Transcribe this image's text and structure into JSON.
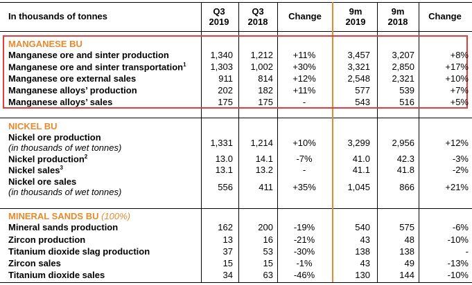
{
  "header": {
    "units": "In thousands of tonnes",
    "cols": [
      {
        "l1": "Q3",
        "l2": "2019"
      },
      {
        "l1": "Q3",
        "l2": "2018"
      },
      {
        "l1": "Change",
        "l2": ""
      },
      {
        "l1": "9m",
        "l2": "2019"
      },
      {
        "l1": "9m",
        "l2": "2018"
      },
      {
        "l1": "Change",
        "l2": ""
      }
    ]
  },
  "sections": [
    {
      "title": "MANGANESE BU",
      "title_suffix": "",
      "rows": [
        {
          "label": "Manganese ore and sinter production",
          "sup": "",
          "sub": "",
          "v": [
            "1,340",
            "1,212",
            "+11%",
            "3,457",
            "3,207",
            "+8%"
          ]
        },
        {
          "label": "Manganese ore and sinter transportation",
          "sup": "1",
          "sub": "",
          "v": [
            "1,303",
            "1,002",
            "+30%",
            "3,321",
            "2,850",
            "+17%"
          ]
        },
        {
          "label": "Manganese ore external sales",
          "sup": "",
          "sub": "",
          "v": [
            "911",
            "814",
            "+12%",
            "2,548",
            "2,321",
            "+10%"
          ]
        },
        {
          "label": "Manganese alloys’ production",
          "sup": "",
          "sub": "",
          "v": [
            "202",
            "182",
            "+11%",
            "577",
            "539",
            "+7%"
          ]
        },
        {
          "label": "Manganese alloys’ sales",
          "sup": "",
          "sub": "",
          "v": [
            "175",
            "175",
            "-",
            "543",
            "516",
            "+5%"
          ]
        }
      ]
    },
    {
      "title": "NICKEL BU",
      "title_suffix": "",
      "rows": [
        {
          "label": "Nickel ore production",
          "sup": "",
          "sub": "(in thousands of wet tonnes)",
          "v": [
            "1,331",
            "1,214",
            "+10%",
            "3,299",
            "2,956",
            "+12%"
          ]
        },
        {
          "label": "Nickel production",
          "sup": "2",
          "sub": "",
          "v": [
            "13.0",
            "14.1",
            "-7%",
            "41.0",
            "42.3",
            "-3%"
          ]
        },
        {
          "label": "Nickel sales",
          "sup": "3",
          "sub": "",
          "v": [
            "13.1",
            "13.2",
            "-",
            "41.1",
            "41.8",
            "-2%"
          ]
        },
        {
          "label": "Nickel ore sales",
          "sup": "",
          "sub": "(in thousands of wet tonnes)",
          "v": [
            "556",
            "411",
            "+35%",
            "1,045",
            "866",
            "+21%"
          ]
        }
      ]
    },
    {
      "title": "MINERAL SANDS BU",
      "title_suffix": "(100%)",
      "rows": [
        {
          "label": "Mineral sands production",
          "sup": "",
          "sub": "",
          "v": [
            "162",
            "200",
            "-19%",
            "540",
            "575",
            "-6%"
          ]
        },
        {
          "label": "Zircon production",
          "sup": "",
          "sub": "",
          "v": [
            "13",
            "16",
            "-21%",
            "43",
            "48",
            "-10%"
          ]
        },
        {
          "label": "Titanium dioxide slag production",
          "sup": "",
          "sub": "",
          "v": [
            "37",
            "53",
            "-30%",
            "138",
            "138",
            "-"
          ]
        },
        {
          "label": "Zircon sales",
          "sup": "",
          "sub": "",
          "v": [
            "15",
            "15",
            "-1%",
            "43",
            "49",
            "-13%"
          ]
        },
        {
          "label": "Titanium dioxide sales",
          "sup": "",
          "sub": "",
          "v": [
            "34",
            "63",
            "-46%",
            "130",
            "144",
            "-10%"
          ]
        }
      ]
    }
  ]
}
